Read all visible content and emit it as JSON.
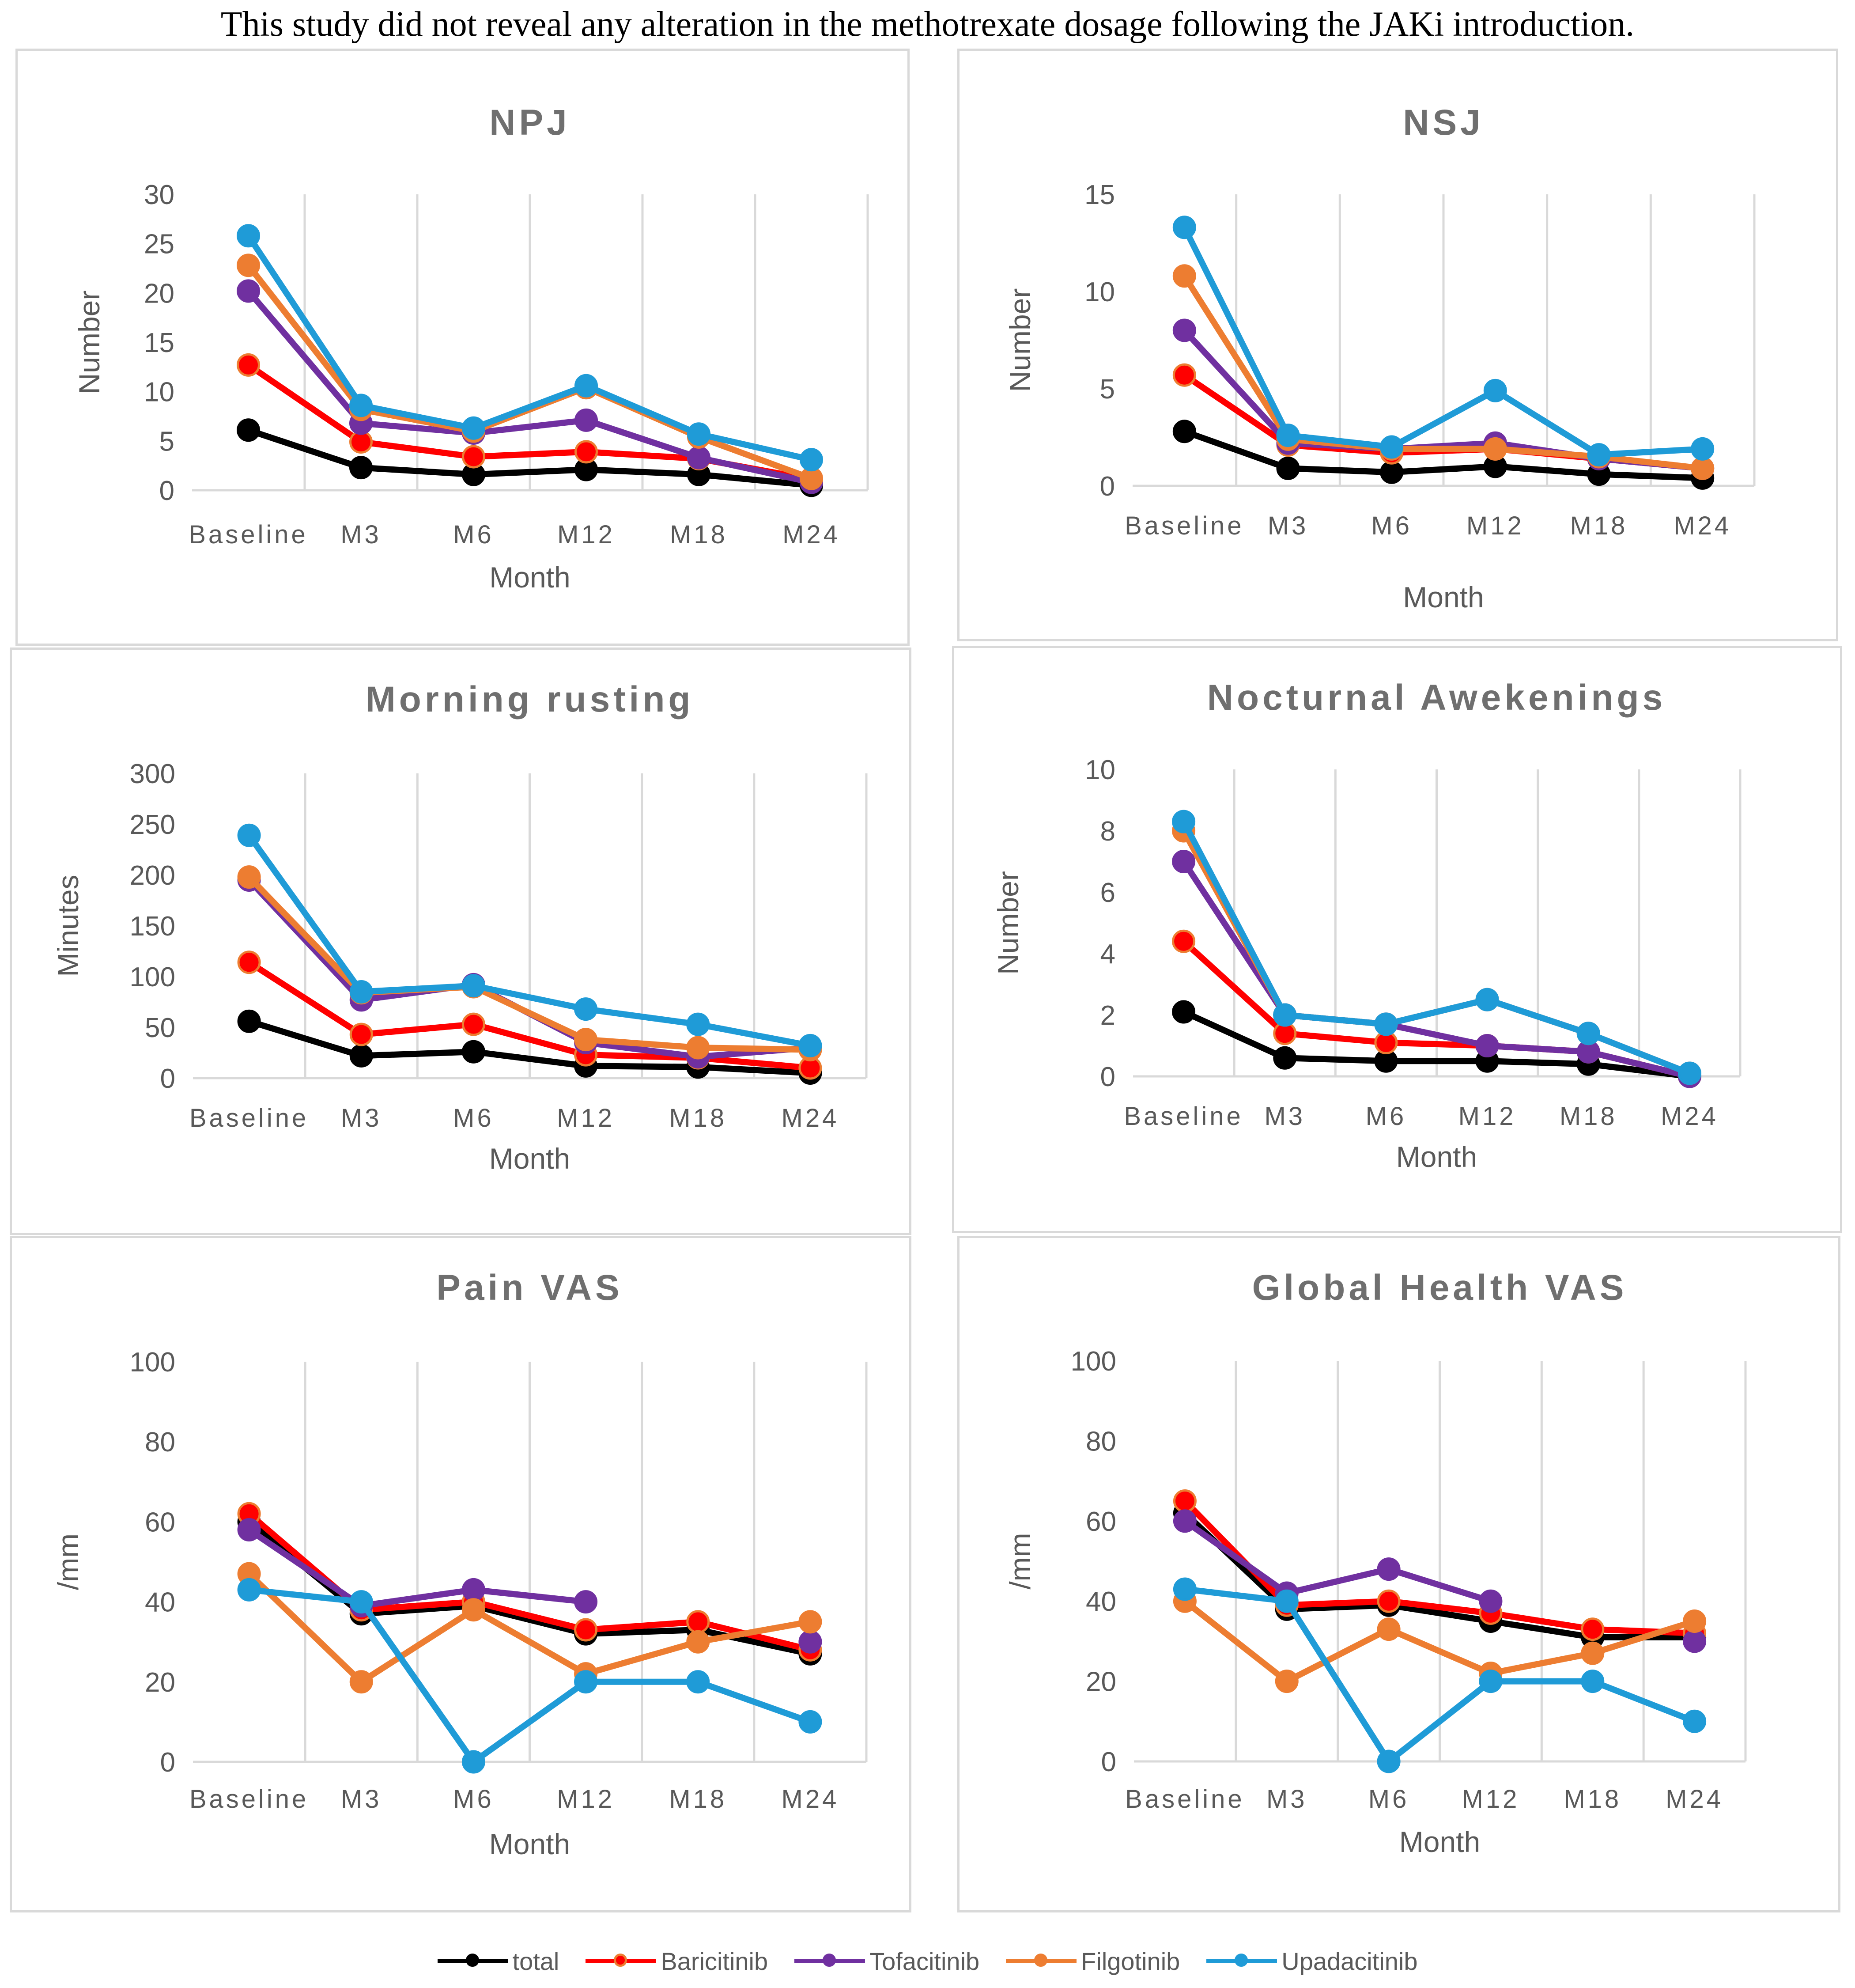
{
  "caption": "This study did not reveal any alteration in the methotrexate dosage following the JAKi introduction.",
  "legend": [
    {
      "name": "total",
      "color": "#000000",
      "stroke": "#000000"
    },
    {
      "name": "Baricitinib",
      "color": "#ff0000",
      "stroke": "#ed7d31"
    },
    {
      "name": "Tofacitinib",
      "color": "#7030a0",
      "stroke": "#7030a0"
    },
    {
      "name": "Filgotinib",
      "color": "#ed7d31",
      "stroke": "#ed7d31"
    },
    {
      "name": "Upadacitinib",
      "color": "#1f9bd7",
      "stroke": "#1f9bd7"
    }
  ],
  "chart_data": [
    {
      "type": "line",
      "title": "NPJ",
      "xlabel": "Month",
      "ylabel": "Number",
      "categories": [
        "Baseline",
        "M3",
        "M6",
        "M12",
        "M18",
        "M24"
      ],
      "ylim": [
        0,
        30
      ],
      "yticks": [
        "0",
        "5",
        "10",
        "15",
        "20",
        "25",
        "30"
      ],
      "series": [
        {
          "name": "total",
          "values": [
            6.1,
            2.3,
            1.6,
            2.1,
            1.6,
            0.5
          ]
        },
        {
          "name": "Baricitinib",
          "values": [
            12.7,
            4.9,
            3.4,
            3.9,
            3.2,
            1.1
          ]
        },
        {
          "name": "Tofacitinib",
          "values": [
            20.2,
            6.8,
            5.8,
            7.1,
            3.3,
            0.8
          ]
        },
        {
          "name": "Filgotinib",
          "values": [
            22.8,
            8.2,
            6.0,
            10.4,
            5.4,
            1.2
          ]
        },
        {
          "name": "Upadacitinib",
          "values": [
            25.8,
            8.6,
            6.3,
            10.6,
            5.7,
            3.1
          ]
        }
      ]
    },
    {
      "type": "line",
      "title": "NSJ",
      "xlabel": "Month",
      "ylabel": "Number",
      "categories": [
        "Baseline",
        "M3",
        "M6",
        "M12",
        "M18",
        "M24"
      ],
      "ylim": [
        0,
        15
      ],
      "yticks": [
        "0",
        "5",
        "10",
        "15"
      ],
      "series": [
        {
          "name": "total",
          "values": [
            2.8,
            0.9,
            0.7,
            1.0,
            0.6,
            0.4
          ]
        },
        {
          "name": "Baricitinib",
          "values": [
            5.7,
            2.1,
            1.7,
            1.9,
            1.4,
            0.9
          ]
        },
        {
          "name": "Tofacitinib",
          "values": [
            8.0,
            2.2,
            1.9,
            2.2,
            1.4,
            0.9
          ]
        },
        {
          "name": "Filgotinib",
          "values": [
            10.8,
            2.4,
            1.9,
            1.9,
            1.5,
            0.9
          ]
        },
        {
          "name": "Upadacitinib",
          "values": [
            13.3,
            2.6,
            2.0,
            4.9,
            1.6,
            1.9
          ]
        }
      ]
    },
    {
      "type": "line",
      "title": "Morning rusting",
      "xlabel": "Month",
      "ylabel": "Minutes",
      "categories": [
        "Baseline",
        "M3",
        "M6",
        "M12",
        "M18",
        "M24"
      ],
      "ylim": [
        0,
        300
      ],
      "yticks": [
        "0",
        "50",
        "100",
        "150",
        "200",
        "250",
        "300"
      ],
      "series": [
        {
          "name": "total",
          "values": [
            56,
            22,
            26,
            12,
            11,
            5
          ]
        },
        {
          "name": "Baricitinib",
          "values": [
            114,
            43,
            53,
            23,
            20,
            10
          ]
        },
        {
          "name": "Tofacitinib",
          "values": [
            195,
            77,
            92,
            35,
            21,
            30
          ]
        },
        {
          "name": "Filgotinib",
          "values": [
            198,
            84,
            90,
            38,
            30,
            28
          ]
        },
        {
          "name": "Upadacitinib",
          "values": [
            239,
            85,
            91,
            68,
            53,
            32
          ]
        }
      ]
    },
    {
      "type": "line",
      "title": "Nocturnal Awekenings",
      "xlabel": "Month",
      "ylabel": "Number",
      "categories": [
        "Baseline",
        "M3",
        "M6",
        "M12",
        "M18",
        "M24"
      ],
      "ylim": [
        0,
        10
      ],
      "yticks": [
        "0",
        "2",
        "4",
        "6",
        "8",
        "10"
      ],
      "series": [
        {
          "name": "total",
          "values": [
            2.1,
            0.6,
            0.5,
            0.5,
            0.4,
            0.0
          ]
        },
        {
          "name": "Baricitinib",
          "values": [
            4.4,
            1.4,
            1.1,
            1.0,
            0.8,
            0.0
          ]
        },
        {
          "name": "Tofacitinib",
          "values": [
            7.0,
            2.0,
            1.7,
            1.0,
            0.8,
            0.0
          ]
        },
        {
          "name": "Filgotinib",
          "values": [
            8.0,
            2.0,
            1.7,
            2.5,
            1.4,
            0.1
          ]
        },
        {
          "name": "Upadacitinib",
          "values": [
            8.3,
            2.0,
            1.7,
            2.5,
            1.4,
            0.1
          ]
        }
      ]
    },
    {
      "type": "line",
      "title": "Pain VAS",
      "xlabel": "Month",
      "ylabel": "/mm",
      "categories": [
        "Baseline",
        "M3",
        "M6",
        "M12",
        "M18",
        "M24"
      ],
      "ylim": [
        0,
        100
      ],
      "yticks": [
        "0",
        "20",
        "40",
        "60",
        "80",
        "100"
      ],
      "series": [
        {
          "name": "total",
          "values": [
            60,
            37,
            39,
            32,
            33,
            27
          ]
        },
        {
          "name": "Baricitinib",
          "values": [
            62,
            38,
            40,
            33,
            35,
            28
          ]
        },
        {
          "name": "Tofacitinib",
          "values": [
            58,
            39,
            43,
            40,
            null,
            30
          ]
        },
        {
          "name": "Filgotinib",
          "values": [
            47,
            20,
            38,
            22,
            30,
            35
          ]
        },
        {
          "name": "Upadacitinib",
          "values": [
            43,
            40,
            0,
            20,
            20,
            10
          ]
        }
      ]
    },
    {
      "type": "line",
      "title": "Global Health VAS",
      "xlabel": "Month",
      "ylabel": "/mm",
      "categories": [
        "Baseline",
        "M3",
        "M6",
        "M12",
        "M18",
        "M24"
      ],
      "ylim": [
        0,
        100
      ],
      "yticks": [
        "0",
        "20",
        "40",
        "60",
        "80",
        "100"
      ],
      "series": [
        {
          "name": "total",
          "values": [
            62,
            38,
            39,
            35,
            31,
            31
          ]
        },
        {
          "name": "Baricitinib",
          "values": [
            65,
            39,
            40,
            37,
            33,
            32
          ]
        },
        {
          "name": "Tofacitinib",
          "values": [
            60,
            42,
            48,
            40,
            null,
            30
          ]
        },
        {
          "name": "Filgotinib",
          "values": [
            40,
            20,
            33,
            22,
            27,
            35
          ]
        },
        {
          "name": "Upadacitinib",
          "values": [
            43,
            40,
            0,
            20,
            20,
            10
          ]
        }
      ]
    }
  ]
}
